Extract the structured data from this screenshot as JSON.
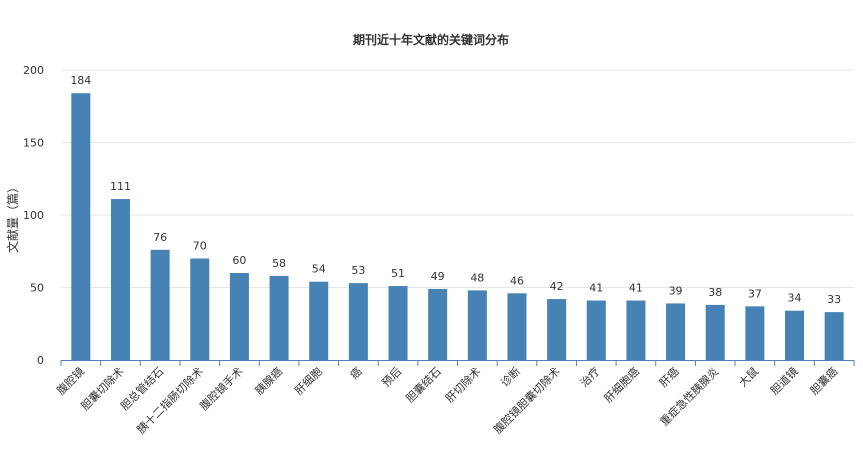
{
  "chart_data": {
    "type": "bar",
    "title": "期刊近十年文献的关键词分布",
    "xlabel": "",
    "ylabel": "文献量（篇）",
    "ylim": [
      0,
      200
    ],
    "yticks": [
      0,
      50,
      100,
      150,
      200
    ],
    "grid": true,
    "color": "#4682b4",
    "categories": [
      "腹腔镜",
      "胆囊切除术",
      "胆总管结石",
      "胰十二指肠切除术",
      "腹腔镜手术",
      "胰腺癌",
      "肝细胞",
      "癌",
      "预后",
      "胆囊结石",
      "肝切除术",
      "诊断",
      "腹腔镜胆囊切除术",
      "治疗",
      "肝细胞癌",
      "肝癌",
      "重症急性胰腺炎",
      "大鼠",
      "胆道镜",
      "胆囊癌"
    ],
    "values": [
      184,
      111,
      76,
      70,
      60,
      58,
      54,
      53,
      51,
      49,
      48,
      46,
      42,
      41,
      41,
      39,
      38,
      37,
      34,
      33
    ]
  }
}
